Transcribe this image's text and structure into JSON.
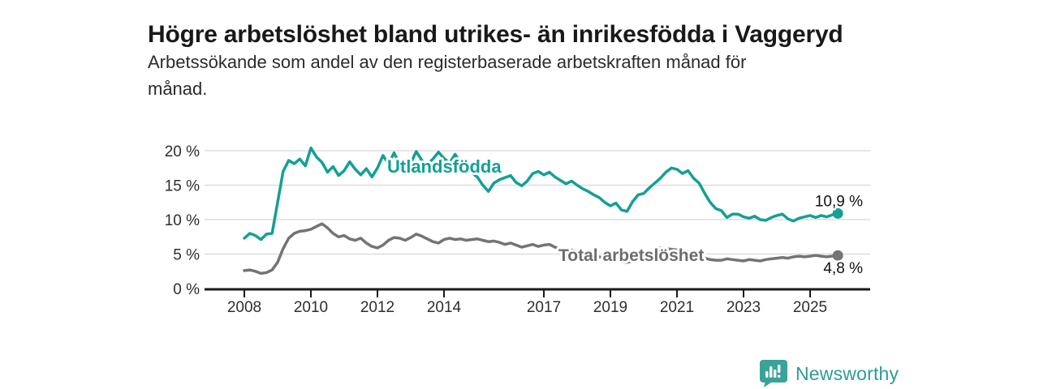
{
  "header": {
    "title": "Högre arbetslöshet bland utrikes- än inrikesfödda i Vaggeryd",
    "subtitle_lines": [
      "Arbetssökande som andel av den registerbaserade arbetskraften månad för",
      "månad."
    ]
  },
  "chart_data": {
    "type": "line",
    "title": "Högre arbetslöshet bland utrikes- än inrikesfödda i Vaggeryd",
    "subtitle": "Arbetssökande som andel av den registerbaserade arbetskraften månad för månad.",
    "unit": "%",
    "grid": "horizontal-only",
    "legend_position": "inline-labels",
    "xlim": [
      2007.5,
      2027.0
    ],
    "ylim": [
      0,
      21
    ],
    "x_axis": {
      "ticks": [
        2008,
        2010,
        2012,
        2014,
        2017,
        2019,
        2021,
        2023,
        2025
      ]
    },
    "y_axis": {
      "tick_values": [
        0,
        5,
        10,
        15,
        20
      ],
      "tick_suffix": " %"
    },
    "series": [
      {
        "name": "Utlandsfödda",
        "color": "#13a095",
        "end_label": "10,9 %",
        "end_value": 10.9,
        "start_year": 2008,
        "points_per_year": 6,
        "values": [
          7.3,
          8.0,
          7.7,
          7.1,
          7.9,
          8.0,
          12.5,
          17.0,
          18.6,
          18.1,
          18.8,
          17.8,
          20.4,
          19.1,
          18.3,
          16.9,
          17.7,
          16.4,
          17.1,
          18.4,
          17.3,
          16.5,
          17.4,
          16.2,
          17.5,
          19.3,
          18.1,
          19.7,
          18.0,
          17.4,
          18.2,
          19.9,
          18.6,
          18.0,
          18.8,
          19.8,
          18.9,
          18.2,
          19.5,
          18.1,
          17.4,
          16.8,
          16.2,
          15.0,
          14.1,
          15.3,
          15.8,
          16.1,
          16.4,
          15.4,
          14.9,
          15.6,
          16.7,
          17.0,
          16.5,
          16.9,
          16.2,
          15.7,
          15.2,
          15.6,
          15.0,
          14.5,
          14.1,
          13.6,
          13.2,
          12.5,
          12.0,
          12.4,
          11.4,
          11.2,
          12.6,
          13.6,
          13.8,
          14.6,
          15.3,
          16.0,
          16.9,
          17.5,
          17.3,
          16.7,
          17.1,
          16.0,
          15.3,
          13.8,
          12.5,
          11.6,
          11.3,
          10.3,
          10.8,
          10.8,
          10.4,
          10.2,
          10.5,
          10.0,
          9.9,
          10.3,
          10.6,
          10.8,
          10.1,
          9.8,
          10.2,
          10.4,
          10.6,
          10.3,
          10.6,
          10.4,
          10.7,
          10.9
        ]
      },
      {
        "name": "Total arbetslöshet",
        "color": "#747474",
        "end_label": "4,8 %",
        "end_value": 4.8,
        "start_year": 2008,
        "points_per_year": 6,
        "values": [
          2.6,
          2.7,
          2.5,
          2.2,
          2.3,
          2.7,
          3.8,
          5.8,
          7.3,
          8.0,
          8.3,
          8.4,
          8.6,
          9.0,
          9.4,
          8.8,
          8.0,
          7.5,
          7.7,
          7.2,
          7.0,
          7.3,
          6.6,
          6.1,
          5.9,
          6.3,
          7.0,
          7.4,
          7.3,
          7.0,
          7.4,
          7.9,
          7.6,
          7.2,
          6.8,
          6.6,
          7.1,
          7.3,
          7.1,
          7.2,
          7.0,
          7.1,
          7.2,
          7.0,
          6.8,
          6.9,
          6.7,
          6.4,
          6.6,
          6.3,
          6.0,
          6.2,
          6.4,
          6.1,
          6.3,
          6.4,
          6.0,
          5.7,
          5.5,
          5.6,
          5.4,
          5.2,
          5.0,
          4.8,
          4.6,
          4.4,
          4.2,
          4.1,
          3.9,
          3.8,
          4.0,
          4.3,
          4.6,
          5.0,
          5.6,
          5.9,
          5.8,
          5.7,
          5.6,
          5.5,
          5.3,
          5.0,
          4.7,
          4.4,
          4.2,
          4.1,
          4.1,
          4.3,
          4.2,
          4.1,
          4.0,
          4.2,
          4.1,
          4.0,
          4.2,
          4.3,
          4.4,
          4.5,
          4.4,
          4.6,
          4.7,
          4.6,
          4.7,
          4.8,
          4.7,
          4.6,
          4.7,
          4.8
        ]
      }
    ],
    "colors": {
      "grid": "#d8d8d8",
      "axis": "#1a1a1a",
      "tick_text": "#2e2e2e",
      "end_label_text": "#111111"
    }
  },
  "footer": {
    "brand": "Newsworthy",
    "brand_color": "#2d9c94",
    "brand_icon": "bar-chart-speech-bubble-icon"
  }
}
